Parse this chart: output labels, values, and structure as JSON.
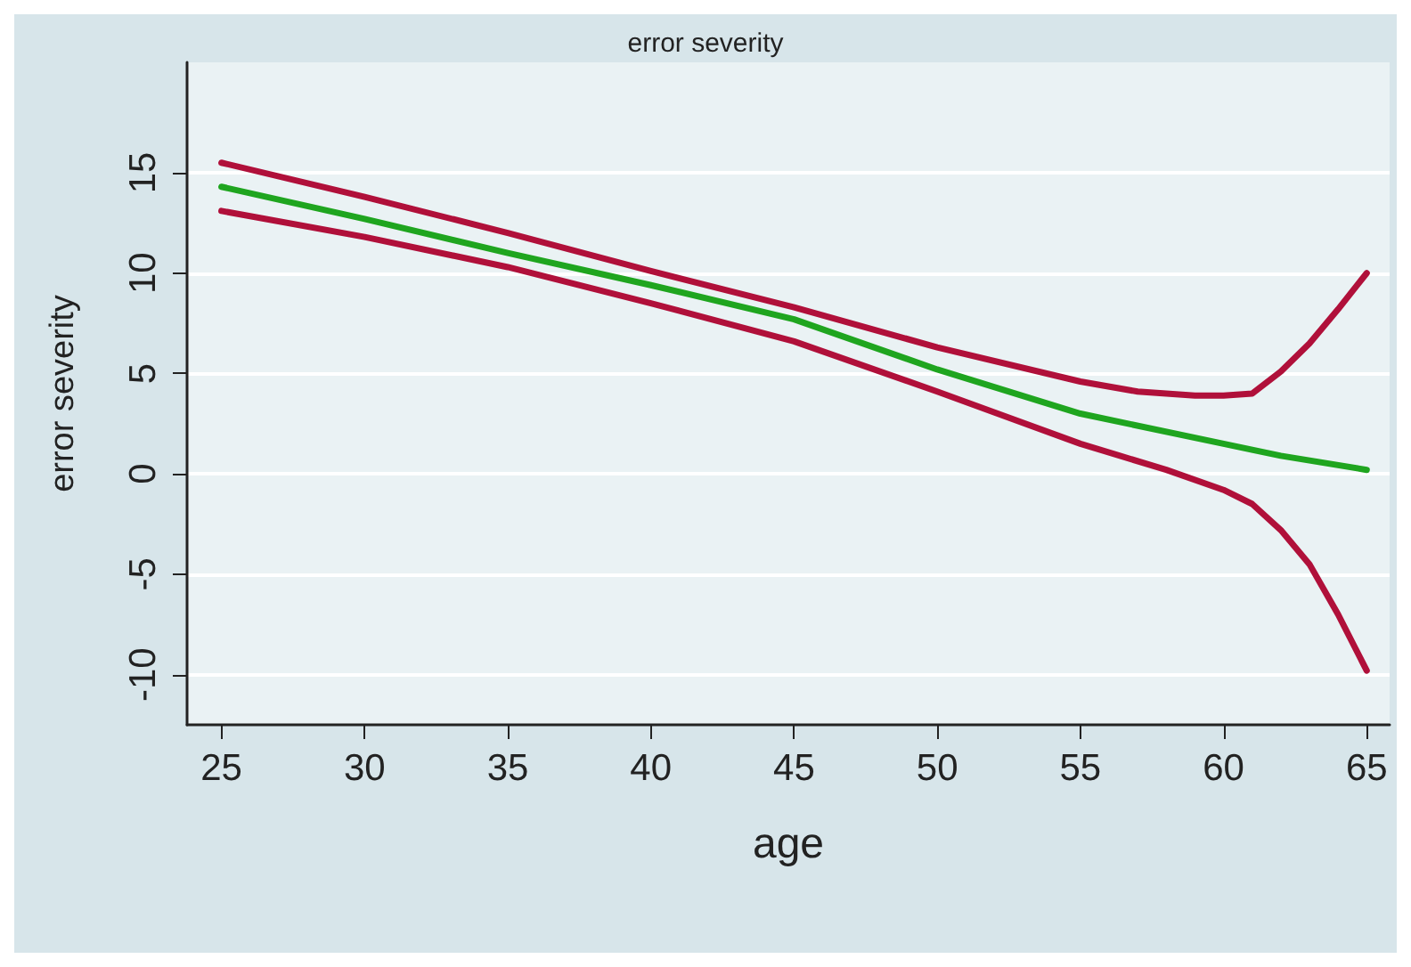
{
  "chart_data": {
    "type": "line",
    "title": "error severity",
    "xlabel": "age",
    "ylabel": "error severity",
    "xlim": [
      23.8,
      65.8
    ],
    "xticks": [
      25,
      30,
      35,
      40,
      45,
      50,
      55,
      60,
      65
    ],
    "ylim": [
      -12.5,
      20.5
    ],
    "yticks": [
      -10,
      -5,
      0,
      5,
      10,
      15
    ],
    "grid": "y",
    "marker": "none",
    "line_style": "solid",
    "series": [
      {
        "color": "#b0103a",
        "x": [
          25,
          30,
          35,
          40,
          45,
          50,
          55,
          57,
          59,
          60,
          61,
          62,
          63,
          64,
          65
        ],
        "values": [
          15.5,
          13.8,
          12.0,
          10.1,
          8.3,
          6.3,
          4.6,
          4.1,
          3.9,
          3.9,
          4.0,
          5.1,
          6.5,
          8.2,
          10.0
        ]
      },
      {
        "color": "#b0103a",
        "x": [
          25,
          30,
          35,
          40,
          45,
          50,
          55,
          58,
          60,
          61,
          62,
          63,
          64,
          65
        ],
        "values": [
          13.1,
          11.8,
          10.3,
          8.5,
          6.6,
          4.1,
          1.5,
          0.2,
          -0.8,
          -1.5,
          -2.8,
          -4.5,
          -7.0,
          -9.8
        ]
      },
      {
        "color": "#1fa51f",
        "x": [
          25,
          30,
          35,
          40,
          45,
          50,
          55,
          60,
          62,
          65
        ],
        "values": [
          14.3,
          12.7,
          11.0,
          9.4,
          7.7,
          5.2,
          3.0,
          1.5,
          0.9,
          0.2
        ]
      }
    ]
  }
}
